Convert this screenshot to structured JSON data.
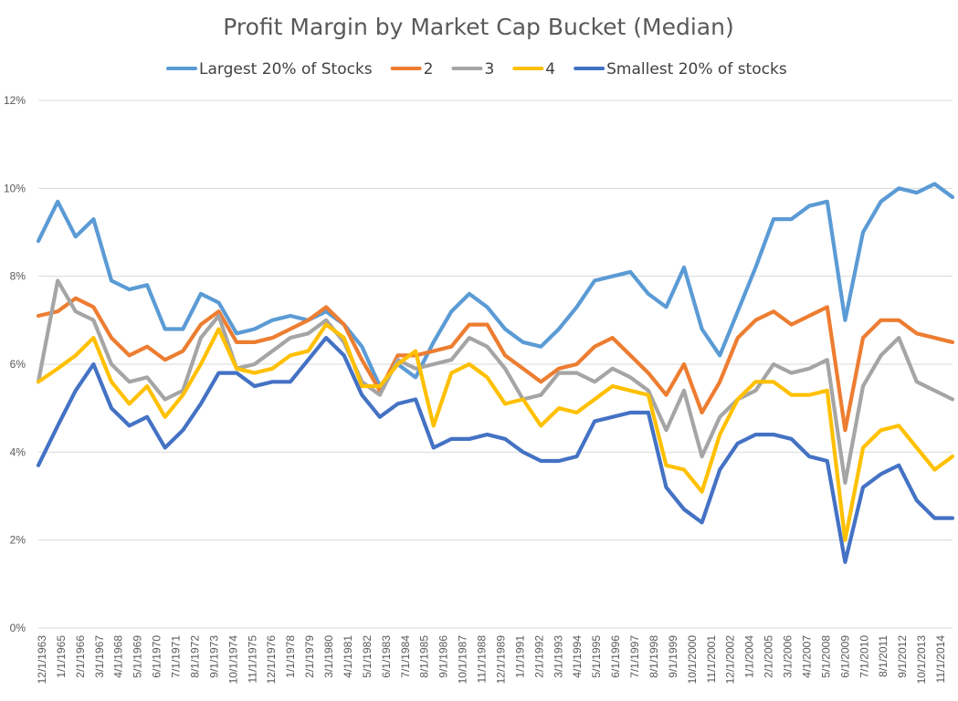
{
  "chart_data": {
    "type": "line",
    "title": "Profit Margin by Market Cap Bucket (Median)",
    "xlabel": "",
    "ylabel": "",
    "ylim": [
      0,
      12
    ],
    "y_ticks": [
      "0%",
      "2%",
      "4%",
      "6%",
      "8%",
      "10%",
      "12%"
    ],
    "y_tick_values": [
      0,
      2,
      4,
      6,
      8,
      10,
      12
    ],
    "grid": true,
    "legend_position": "top",
    "x_tick_labels": [
      "12/1/1963",
      "1/1/1965",
      "2/1/1966",
      "3/1/1967",
      "4/1/1968",
      "5/1/1969",
      "6/1/1970",
      "7/1/1971",
      "8/1/1972",
      "9/1/1973",
      "10/1/1974",
      "11/1/1975",
      "12/1/1976",
      "1/1/1978",
      "2/1/1979",
      "3/1/1980",
      "4/1/1981",
      "5/1/1982",
      "6/1/1983",
      "7/1/1984",
      "8/1/1985",
      "9/1/1986",
      "10/1/1987",
      "11/1/1988",
      "12/1/1989",
      "1/1/1991",
      "2/1/1992",
      "3/1/1993",
      "4/1/1994",
      "5/1/1995",
      "6/1/1996",
      "7/1/1997",
      "8/1/1998",
      "9/1/1999",
      "10/1/2000",
      "11/1/2001",
      "12/1/2002",
      "1/1/2004",
      "2/1/2005",
      "3/1/2006",
      "4/1/2007",
      "5/1/2008",
      "6/1/2009",
      "7/1/2010",
      "8/1/2011",
      "9/1/2012",
      "10/1/2013",
      "11/1/2014"
    ],
    "x": [
      1963.92,
      1965.0,
      1966.0,
      1967.0,
      1968.0,
      1969.0,
      1970.0,
      1971.0,
      1972.0,
      1973.0,
      1974.0,
      1975.0,
      1976.0,
      1977.0,
      1978.0,
      1979.0,
      1980.0,
      1981.0,
      1982.0,
      1983.0,
      1984.0,
      1985.0,
      1986.0,
      1987.0,
      1988.0,
      1989.0,
      1990.0,
      1991.0,
      1992.0,
      1993.0,
      1994.0,
      1995.0,
      1996.0,
      1997.0,
      1998.0,
      1999.0,
      2000.0,
      2001.0,
      2002.0,
      2003.0,
      2004.0,
      2005.0,
      2006.0,
      2007.0,
      2008.0,
      2009.0,
      2010.0,
      2011.0,
      2012.0,
      2013.0,
      2014.0,
      2015.0
    ],
    "series": [
      {
        "name": "Largest 20% of Stocks",
        "color": "#5B9BD5",
        "values": [
          8.8,
          9.7,
          8.9,
          9.3,
          7.9,
          7.7,
          7.8,
          6.8,
          6.8,
          7.6,
          7.4,
          6.7,
          6.8,
          7.0,
          7.1,
          7.0,
          7.2,
          6.9,
          6.4,
          5.5,
          6.0,
          5.7,
          6.5,
          7.2,
          7.6,
          7.3,
          6.8,
          6.5,
          6.4,
          6.8,
          7.3,
          7.9,
          8.0,
          8.1,
          7.6,
          7.3,
          8.2,
          6.8,
          6.2,
          7.2,
          8.2,
          9.3,
          9.3,
          9.6,
          9.7,
          7.0,
          9.0,
          9.7,
          10.0,
          9.9,
          10.1,
          9.8
        ]
      },
      {
        "name": "2",
        "color": "#ED7D31",
        "values": [
          7.1,
          7.2,
          7.5,
          7.3,
          6.6,
          6.2,
          6.4,
          6.1,
          6.3,
          6.9,
          7.2,
          6.5,
          6.5,
          6.6,
          6.8,
          7.0,
          7.3,
          6.9,
          6.1,
          5.4,
          6.2,
          6.2,
          6.3,
          6.4,
          6.9,
          6.9,
          6.2,
          5.9,
          5.6,
          5.9,
          6.0,
          6.4,
          6.6,
          6.2,
          5.8,
          5.3,
          6.0,
          4.9,
          5.6,
          6.6,
          7.0,
          7.2,
          6.9,
          7.1,
          7.3,
          4.5,
          6.6,
          7.0,
          7.0,
          6.7,
          6.6,
          6.5
        ]
      },
      {
        "name": "3",
        "color": "#A5A5A5",
        "values": [
          5.6,
          7.9,
          7.2,
          7.0,
          6.0,
          5.6,
          5.7,
          5.2,
          5.4,
          6.6,
          7.1,
          5.9,
          6.0,
          6.3,
          6.6,
          6.7,
          7.0,
          6.5,
          5.6,
          5.3,
          6.1,
          5.9,
          6.0,
          6.1,
          6.6,
          6.4,
          5.9,
          5.2,
          5.3,
          5.8,
          5.8,
          5.6,
          5.9,
          5.7,
          5.4,
          4.5,
          5.4,
          3.9,
          4.8,
          5.2,
          5.4,
          6.0,
          5.8,
          5.9,
          6.1,
          3.3,
          5.5,
          6.2,
          6.6,
          5.6,
          5.4,
          5.2
        ]
      },
      {
        "name": "4",
        "color": "#FFC000",
        "values": [
          5.6,
          5.9,
          6.2,
          6.6,
          5.6,
          5.1,
          5.5,
          4.8,
          5.3,
          6.0,
          6.8,
          5.9,
          5.8,
          5.9,
          6.2,
          6.3,
          6.9,
          6.6,
          5.5,
          5.5,
          6.0,
          6.3,
          4.6,
          5.8,
          6.0,
          5.7,
          5.1,
          5.2,
          4.6,
          5.0,
          4.9,
          5.2,
          5.5,
          5.4,
          5.3,
          3.7,
          3.6,
          3.1,
          4.4,
          5.2,
          5.6,
          5.6,
          5.3,
          5.3,
          5.4,
          2.0,
          4.1,
          4.5,
          4.6,
          4.1,
          3.6,
          3.9
        ]
      },
      {
        "name": "Smallest 20% of stocks",
        "color": "#4472C4",
        "values": [
          3.7,
          4.6,
          5.4,
          6.0,
          5.0,
          4.6,
          4.8,
          4.1,
          4.5,
          5.1,
          5.8,
          5.8,
          5.5,
          5.6,
          5.6,
          6.1,
          6.6,
          6.2,
          5.3,
          4.8,
          5.1,
          5.2,
          4.1,
          4.3,
          4.3,
          4.4,
          4.3,
          4.0,
          3.8,
          3.8,
          3.9,
          4.7,
          4.8,
          4.9,
          4.9,
          3.2,
          2.7,
          2.4,
          3.6,
          4.2,
          4.4,
          4.4,
          4.3,
          3.9,
          3.8,
          1.5,
          3.2,
          3.5,
          3.7,
          2.9,
          2.5,
          2.5
        ]
      }
    ]
  }
}
